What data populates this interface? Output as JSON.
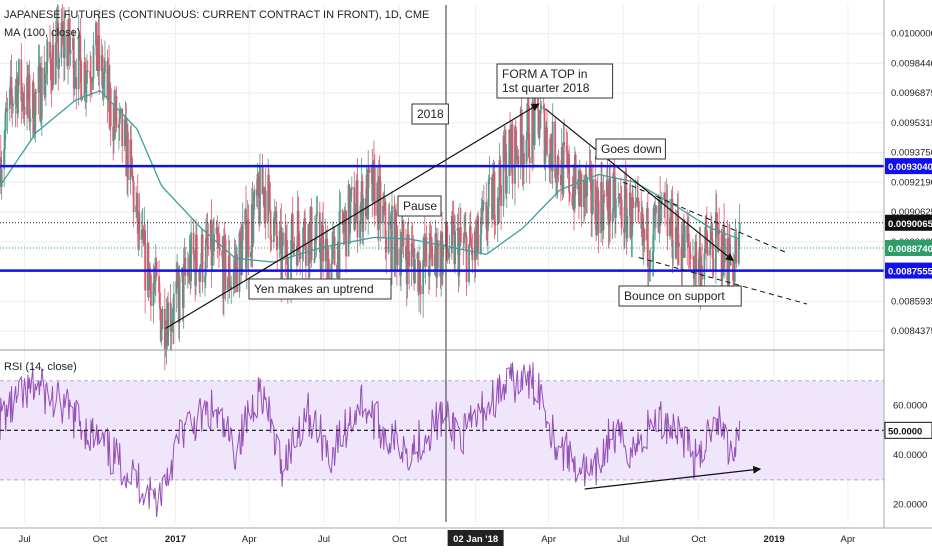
{
  "header": {
    "title": "JAPANESE FUTURES (CONTINUOUS: CURRENT CONTRACT IN FRONT), 1D, CME",
    "ma_label": "MA (100, close)"
  },
  "colors": {
    "up_candle": "#4f9a8a",
    "down_candle": "#e0546d",
    "ma_line": "#3aa1a0",
    "support_line": "#1010ee",
    "rsi_line": "#9650b8",
    "rsi_band": "#efe6fb",
    "grid": "#eeeeee",
    "current_price": "#2e9d67"
  },
  "price_axis": {
    "ticks": [
      "0.0100000",
      "0.0098440",
      "0.0096875",
      "0.0095315",
      "0.0093750",
      "0.0092190",
      "0.0090625",
      "0.0089065",
      "0.0087500",
      "0.0085935",
      "0.0084375"
    ],
    "badges": [
      {
        "label": "0.0093040",
        "kind": "support"
      },
      {
        "label": "0.0090065",
        "kind": "level"
      },
      {
        "label": "0.0088740",
        "kind": "current"
      },
      {
        "label": "0.0087555",
        "kind": "support"
      }
    ]
  },
  "rsi": {
    "label": "RSI (14, close)",
    "ticks": [
      "60.0000",
      "40.0000",
      "20.0000"
    ],
    "mid_badge": "50.0000",
    "band": [
      30,
      70
    ]
  },
  "time_axis": {
    "labels": [
      "Jul",
      "Oct",
      "2017",
      "Apr",
      "Jul",
      "Oct",
      "02 Jan '18",
      "Apr",
      "Jul",
      "Oct",
      "2019",
      "Apr"
    ]
  },
  "annotations": {
    "form_top_line1": "FORM A TOP in",
    "form_top_line2": "1st quarter 2018",
    "year_2018": "2018",
    "goes_down": "Goes down",
    "pause": "Pause",
    "yen_uptrend": "Yen makes an uptrend",
    "bounce": "Bounce on support"
  },
  "chart_data": [
    {
      "type": "candlestick",
      "title": "JAPANESE FUTURES (CONTINUOUS: CURRENT CONTRACT IN FRONT), 1D, CME",
      "ylim": [
        0.00837,
        0.01015
      ],
      "x_range": [
        "2016-06-01",
        "2019-05-15"
      ],
      "close_anchors": [
        [
          "2016-06-01",
          0.00935
        ],
        [
          "2016-06-20",
          0.00975
        ],
        [
          "2016-07-10",
          0.0096
        ],
        [
          "2016-08-01",
          0.00985
        ],
        [
          "2016-08-20",
          0.00995
        ],
        [
          "2016-09-10",
          0.0098
        ],
        [
          "2016-09-25",
          0.0099
        ],
        [
          "2016-10-15",
          0.0096
        ],
        [
          "2016-11-05",
          0.00935
        ],
        [
          "2016-11-20",
          0.00885
        ],
        [
          "2016-12-05",
          0.0087
        ],
        [
          "2016-12-15",
          0.0085
        ],
        [
          "2017-01-05",
          0.0086
        ],
        [
          "2017-01-20",
          0.0088
        ],
        [
          "2017-02-15",
          0.00885
        ],
        [
          "2017-03-10",
          0.00872
        ],
        [
          "2017-04-05",
          0.00902
        ],
        [
          "2017-04-20",
          0.0092
        ],
        [
          "2017-05-10",
          0.0088
        ],
        [
          "2017-06-01",
          0.00898
        ],
        [
          "2017-06-25",
          0.0089
        ],
        [
          "2017-07-10",
          0.00878
        ],
        [
          "2017-08-01",
          0.00905
        ],
        [
          "2017-09-01",
          0.00918
        ],
        [
          "2017-09-15",
          0.00895
        ],
        [
          "2017-10-05",
          0.00888
        ],
        [
          "2017-10-25",
          0.00878
        ],
        [
          "2017-11-15",
          0.00885
        ],
        [
          "2017-12-10",
          0.00888
        ],
        [
          "2018-01-02",
          0.00885
        ],
        [
          "2018-01-20",
          0.0091
        ],
        [
          "2018-02-10",
          0.00935
        ],
        [
          "2018-03-01",
          0.00945
        ],
        [
          "2018-03-20",
          0.00955
        ],
        [
          "2018-04-10",
          0.00935
        ],
        [
          "2018-05-01",
          0.0092
        ],
        [
          "2018-05-25",
          0.00912
        ],
        [
          "2018-06-20",
          0.0091
        ],
        [
          "2018-07-10",
          0.00905
        ],
        [
          "2018-07-25",
          0.0089
        ],
        [
          "2018-08-20",
          0.00902
        ],
        [
          "2018-09-10",
          0.0089
        ],
        [
          "2018-10-01",
          0.0088
        ],
        [
          "2018-10-20",
          0.0089
        ],
        [
          "2018-11-10",
          0.0088
        ],
        [
          "2018-11-20",
          0.00887
        ]
      ]
    },
    {
      "type": "line",
      "series": [
        {
          "name": "MA (100, close)"
        }
      ],
      "anchors": [
        [
          "2016-06-01",
          0.0092
        ],
        [
          "2016-07-15",
          0.00948
        ],
        [
          "2016-09-01",
          0.00965
        ],
        [
          "2016-10-01",
          0.0097
        ],
        [
          "2016-11-15",
          0.0095
        ],
        [
          "2016-12-15",
          0.0092
        ],
        [
          "2017-02-01",
          0.00898
        ],
        [
          "2017-03-15",
          0.00882
        ],
        [
          "2017-05-01",
          0.0088
        ],
        [
          "2017-07-01",
          0.00888
        ],
        [
          "2017-09-01",
          0.00893
        ],
        [
          "2017-10-15",
          0.00892
        ],
        [
          "2017-12-01",
          0.00888
        ],
        [
          "2018-01-15",
          0.00884
        ],
        [
          "2018-03-01",
          0.00898
        ],
        [
          "2018-04-15",
          0.00918
        ],
        [
          "2018-06-01",
          0.00926
        ],
        [
          "2018-07-15",
          0.00922
        ],
        [
          "2018-09-01",
          0.0091
        ],
        [
          "2018-10-15",
          0.00898
        ],
        [
          "2018-11-20",
          0.00892
        ]
      ]
    },
    {
      "type": "line",
      "title": "RSI (14, close)",
      "ylim": [
        13,
        80
      ],
      "anchors": [
        [
          "2016-06-01",
          55
        ],
        [
          "2016-07-15",
          68
        ],
        [
          "2016-09-01",
          55
        ],
        [
          "2016-10-15",
          40
        ],
        [
          "2016-11-15",
          30
        ],
        [
          "2016-12-10",
          22
        ],
        [
          "2017-01-10",
          50
        ],
        [
          "2017-02-15",
          58
        ],
        [
          "2017-03-15",
          42
        ],
        [
          "2017-04-15",
          68
        ],
        [
          "2017-05-10",
          35
        ],
        [
          "2017-06-10",
          58
        ],
        [
          "2017-07-10",
          40
        ],
        [
          "2017-08-15",
          62
        ],
        [
          "2017-09-15",
          48
        ],
        [
          "2017-10-15",
          42
        ],
        [
          "2017-11-20",
          55
        ],
        [
          "2017-12-20",
          48
        ],
        [
          "2018-01-20",
          62
        ],
        [
          "2018-02-20",
          70
        ],
        [
          "2018-03-20",
          68
        ],
        [
          "2018-04-10",
          45
        ],
        [
          "2018-05-01",
          38
        ],
        [
          "2018-05-25",
          30
        ],
        [
          "2018-06-15",
          48
        ],
        [
          "2018-07-15",
          42
        ],
        [
          "2018-08-10",
          55
        ],
        [
          "2018-09-10",
          50
        ],
        [
          "2018-10-01",
          35
        ],
        [
          "2018-10-20",
          58
        ],
        [
          "2018-11-10",
          40
        ],
        [
          "2018-11-20",
          52
        ]
      ]
    },
    {
      "type": "annotation_lines",
      "horizontal_levels": [
        0.009304,
        0.0090065,
        0.008874,
        0.0087555
      ],
      "trendlines": [
        {
          "from": [
            "2016-12-20",
            0.008452
          ],
          "to": [
            "2018-03-20",
            0.00963
          ]
        },
        {
          "from": [
            "2018-03-28",
            0.009605
          ],
          "to": [
            "2018-11-12",
            0.008808
          ]
        },
        {
          "from": [
            "2018-07-01",
            0.00922
          ],
          "to": [
            "2019-01-15",
            0.008852
          ]
        },
        {
          "from": [
            "2018-07-20",
            0.008824
          ],
          "to": [
            "2019-02-10",
            0.00858
          ]
        },
        {
          "from": [
            "2018-05-15",
            0.008518
          ],
          "to": [
            "2018-12-15",
            0.00877
          ]
        }
      ]
    }
  ]
}
